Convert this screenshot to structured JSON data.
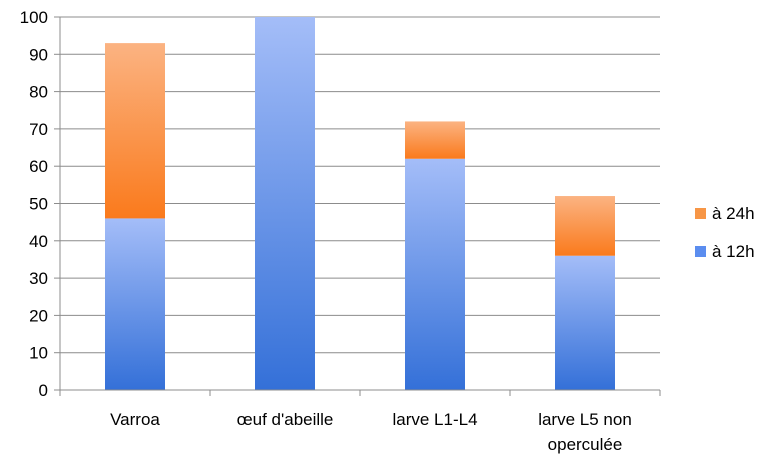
{
  "chart_data": {
    "type": "bar",
    "stacked": true,
    "categories": [
      [
        "Varroa"
      ],
      [
        "œuf d'abeille"
      ],
      [
        "larve L1-L4"
      ],
      [
        "larve L5 non",
        "operculée"
      ]
    ],
    "series": [
      {
        "name": "à 12h",
        "values": [
          46,
          100,
          62,
          36
        ],
        "color": "#5b8def"
      },
      {
        "name": "à 24h",
        "values": [
          47,
          0,
          10,
          16
        ],
        "color": "#f79646"
      }
    ],
    "legend_order": [
      "à 24h",
      "à 12h"
    ],
    "ylim": [
      0,
      100
    ],
    "yticks": [
      0,
      10,
      20,
      30,
      40,
      50,
      60,
      70,
      80,
      90,
      100
    ],
    "grid": true,
    "legend_position": "right",
    "title": "",
    "xlabel": "",
    "ylabel": ""
  }
}
